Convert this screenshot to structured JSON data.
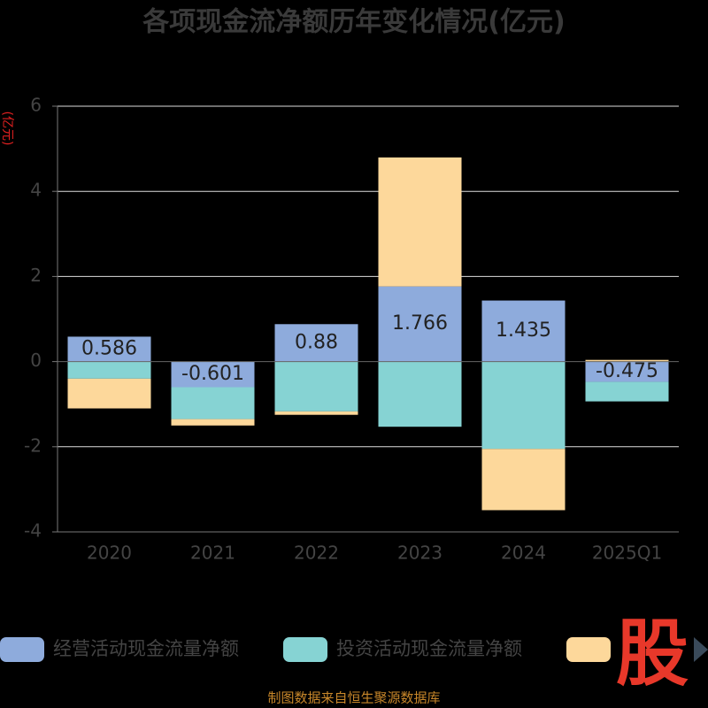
{
  "chart_data": {
    "type": "bar",
    "stacked": true,
    "title": "各项现金流净额历年变化情况(亿元)",
    "y_label": "(亿元)",
    "source": "制图数据来自恒生聚源数据库",
    "logo": "股",
    "categories": [
      "2020",
      "2021",
      "2022",
      "2023",
      "2024",
      "2025Q1"
    ],
    "series": [
      {
        "name": "经营活动现金流量净额",
        "color": "#8eabdc",
        "values": [
          0.586,
          -0.601,
          0.88,
          1.766,
          1.435,
          -0.475
        ],
        "show_labels": true
      },
      {
        "name": "投资活动现金流量净额",
        "color": "#86d3d3",
        "values": [
          -0.4,
          -0.75,
          -1.17,
          -1.53,
          -2.05,
          -0.46
        ]
      },
      {
        "color": "#fdd89b",
        "values": [
          -0.7,
          -0.15,
          -0.08,
          3.03,
          -1.44,
          0.04
        ]
      }
    ],
    "ylim": [
      -4,
      6
    ],
    "yticks": [
      -4,
      -2,
      0,
      2,
      4,
      6
    ],
    "grid": true
  }
}
